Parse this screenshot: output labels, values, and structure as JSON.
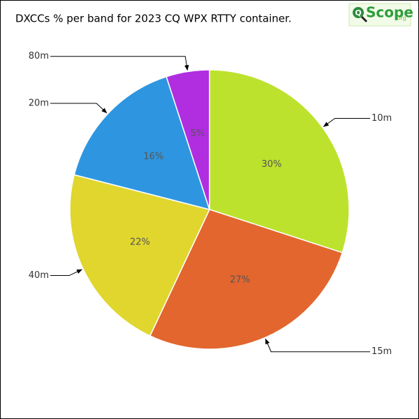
{
  "chart_data": {
    "type": "pie",
    "title": "DXCCs % per band for 2023 CQ WPX RTTY container.",
    "logo": {
      "mark": "Q",
      "name": "Scope",
      "suffix": ".org"
    },
    "categories": [
      "10m",
      "15m",
      "40m",
      "20m",
      "80m"
    ],
    "values": [
      30,
      27,
      22,
      16,
      5
    ],
    "value_labels": [
      "30%",
      "27%",
      "22%",
      "16%",
      "5%"
    ],
    "colors": [
      "#bde22e",
      "#e2662e",
      "#e0d62e",
      "#2e96e0",
      "#b02ee0"
    ]
  }
}
